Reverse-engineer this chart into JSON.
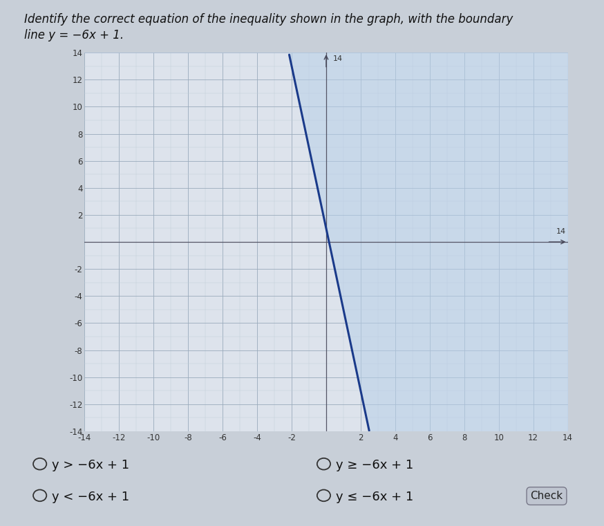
{
  "axis_min": -14,
  "axis_max": 14,
  "tick_step": 2,
  "line_slope": -6,
  "line_intercept": 1,
  "line_color": "#1a3a8a",
  "line_width": 2.2,
  "shade_color": "#b8cfe8",
  "shade_alpha": 0.55,
  "grid_major_color": "#9aaabb",
  "grid_minor_color": "#c0ccd8",
  "bg_color": "#c8cfd8",
  "plot_bg": "#dde3ec",
  "title_line1": "Identify the correct equation of the inequality shown in the graph, with the boundary",
  "title_line2": "line y = −6x + 1.",
  "title_fontsize": 12,
  "options": [
    {
      "text": "y > −6x + 1",
      "col": 0,
      "row": 0
    },
    {
      "text": "y ≥ −6x + 1",
      "col": 1,
      "row": 0
    },
    {
      "text": "y < −6x + 1",
      "col": 0,
      "row": 1
    },
    {
      "text": "y ≤ −6x + 1",
      "col": 1,
      "row": 1
    }
  ],
  "options_fontsize": 13,
  "check_text": "Check"
}
